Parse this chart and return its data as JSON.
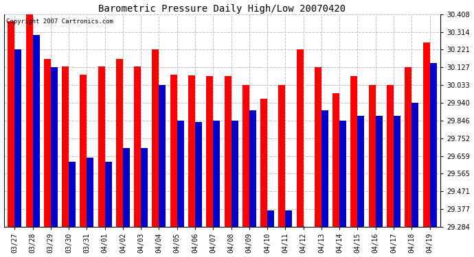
{
  "title": "Barometric Pressure Daily High/Low 20070420",
  "copyright": "Copyright 2007 Cartronics.com",
  "background_color": "#ffffff",
  "plot_bg_color": "#ffffff",
  "grid_color": "#c0c0c0",
  "bar_width": 0.38,
  "dates": [
    "03/27",
    "03/28",
    "03/29",
    "03/30",
    "03/31",
    "04/01",
    "04/02",
    "04/03",
    "04/04",
    "04/05",
    "04/06",
    "04/07",
    "04/08",
    "04/09",
    "04/10",
    "04/11",
    "04/12",
    "04/13",
    "04/14",
    "04/15",
    "04/16",
    "04/17",
    "04/18",
    "04/19"
  ],
  "highs": [
    30.37,
    30.408,
    30.17,
    30.13,
    30.09,
    30.13,
    30.17,
    30.13,
    30.221,
    30.09,
    30.085,
    30.08,
    30.08,
    30.033,
    29.96,
    30.033,
    30.221,
    30.127,
    29.99,
    30.08,
    30.033,
    30.033,
    30.127,
    30.26
  ],
  "lows": [
    30.221,
    30.3,
    30.127,
    29.63,
    29.65,
    29.63,
    29.7,
    29.7,
    30.033,
    29.846,
    29.84,
    29.846,
    29.846,
    29.9,
    29.37,
    29.37,
    29.284,
    29.9,
    29.846,
    29.87,
    29.87,
    29.87,
    29.94,
    30.15
  ],
  "high_color": "#ff0000",
  "low_color": "#0000cc",
  "ymin": 29.284,
  "ymax": 30.408,
  "yticks": [
    29.284,
    29.377,
    29.471,
    29.565,
    29.659,
    29.752,
    29.846,
    29.94,
    30.033,
    30.127,
    30.221,
    30.314,
    30.408
  ],
  "title_fontsize": 10,
  "tick_fontsize": 7,
  "copyright_fontsize": 6.5
}
